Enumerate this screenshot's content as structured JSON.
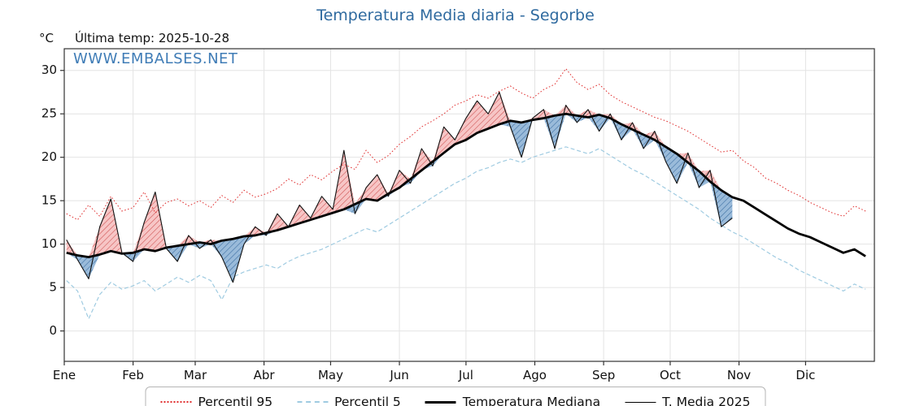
{
  "header": {
    "title": "Temperatura Media diaria - Segorbe",
    "unit_label": "°C",
    "last_temp_label": "Última temp: 2025-10-28",
    "watermark": "WWW.EMBALSES.NET"
  },
  "chart_data": {
    "type": "line",
    "title": "Temperatura Media diaria - Segorbe",
    "xlabel": "",
    "ylabel": "°C",
    "ylim": [
      -3.5,
      32.5
    ],
    "yticks": [
      0,
      5,
      10,
      15,
      20,
      25,
      30
    ],
    "x_unit": "day_of_year",
    "grid": true,
    "legend_position": "bottom",
    "month_ticks": {
      "days": [
        1,
        32,
        60,
        91,
        121,
        152,
        182,
        213,
        244,
        274,
        305,
        335
      ],
      "labels": [
        "Ene",
        "Feb",
        "Mar",
        "Abr",
        "May",
        "Jun",
        "Jul",
        "Ago",
        "Sep",
        "Oct",
        "Nov",
        "Dic"
      ]
    },
    "x": [
      2,
      7,
      12,
      17,
      22,
      27,
      32,
      37,
      42,
      47,
      52,
      57,
      62,
      67,
      72,
      77,
      82,
      87,
      92,
      97,
      102,
      107,
      112,
      117,
      122,
      127,
      132,
      137,
      142,
      147,
      152,
      157,
      162,
      167,
      172,
      177,
      182,
      187,
      192,
      197,
      202,
      207,
      212,
      217,
      222,
      227,
      232,
      237,
      242,
      247,
      252,
      257,
      262,
      267,
      272,
      277,
      282,
      287,
      292,
      297,
      302,
      307,
      312,
      317,
      322,
      327,
      332,
      337,
      342,
      347,
      352,
      357,
      362
    ],
    "series": [
      {
        "name": "Percentil 95",
        "style": "dotted",
        "values": [
          13.5,
          12.8,
          14.5,
          13.2,
          15.5,
          13.8,
          14.2,
          16.0,
          13.6,
          14.8,
          15.2,
          14.4,
          15.0,
          14.2,
          15.6,
          14.8,
          16.2,
          15.4,
          15.8,
          16.4,
          17.5,
          16.8,
          18.0,
          17.4,
          18.4,
          19.2,
          18.6,
          20.8,
          19.4,
          20.2,
          21.5,
          22.4,
          23.5,
          24.2,
          25.0,
          26.0,
          26.5,
          27.2,
          26.8,
          27.6,
          28.2,
          27.4,
          26.8,
          27.8,
          28.4,
          30.2,
          28.6,
          27.8,
          28.4,
          27.2,
          26.4,
          25.8,
          25.2,
          24.6,
          24.2,
          23.6,
          23.0,
          22.2,
          21.4,
          20.6,
          20.8,
          19.6,
          18.8,
          17.6,
          17.0,
          16.2,
          15.6,
          14.8,
          14.2,
          13.6,
          13.2,
          14.4,
          13.8
        ]
      },
      {
        "name": "Percentil 5",
        "style": "dashed",
        "values": [
          5.8,
          4.6,
          1.4,
          4.2,
          5.6,
          4.8,
          5.2,
          5.8,
          4.6,
          5.4,
          6.2,
          5.6,
          6.4,
          5.8,
          3.6,
          6.2,
          6.8,
          7.2,
          7.6,
          7.2,
          8.0,
          8.6,
          9.0,
          9.4,
          10.0,
          10.6,
          11.2,
          11.8,
          11.4,
          12.2,
          13.0,
          13.8,
          14.6,
          15.4,
          16.2,
          17.0,
          17.6,
          18.4,
          18.8,
          19.4,
          19.8,
          19.4,
          20.0,
          20.4,
          20.8,
          21.2,
          20.8,
          20.4,
          21.0,
          20.2,
          19.4,
          18.6,
          18.0,
          17.2,
          16.4,
          15.6,
          14.8,
          14.0,
          13.0,
          12.2,
          11.4,
          10.8,
          10.0,
          9.2,
          8.4,
          7.8,
          7.0,
          6.4,
          5.8,
          5.2,
          4.6,
          5.4,
          4.8
        ]
      },
      {
        "name": "Temperatura Mediana",
        "style": "solid-thick",
        "values": [
          9.0,
          8.7,
          8.5,
          8.8,
          9.2,
          8.9,
          9.0,
          9.4,
          9.2,
          9.6,
          9.8,
          10.0,
          10.2,
          10.0,
          10.4,
          10.6,
          10.9,
          11.0,
          11.3,
          11.6,
          12.0,
          12.4,
          12.8,
          13.2,
          13.6,
          14.0,
          14.6,
          15.2,
          15.0,
          15.8,
          16.5,
          17.5,
          18.5,
          19.5,
          20.5,
          21.5,
          22.0,
          22.8,
          23.3,
          23.8,
          24.2,
          24.0,
          24.3,
          24.5,
          24.8,
          25.0,
          24.8,
          24.6,
          24.9,
          24.5,
          23.8,
          23.2,
          22.6,
          22.0,
          21.2,
          20.4,
          19.4,
          18.4,
          17.2,
          16.2,
          15.4,
          15.0,
          14.2,
          13.4,
          12.6,
          11.8,
          11.2,
          10.8,
          10.2,
          9.6,
          9.0,
          9.4,
          8.6
        ]
      },
      {
        "name": "T. Media 2025",
        "style": "solid-thin",
        "last_date": "2025-10-28",
        "values": [
          10.5,
          8.2,
          6.0,
          12.0,
          15.2,
          9.0,
          8.0,
          12.5,
          16.0,
          9.5,
          8.0,
          11.0,
          9.5,
          10.5,
          8.5,
          5.6,
          10.0,
          12.0,
          11.0,
          13.5,
          12.0,
          14.5,
          13.0,
          15.5,
          14.0,
          20.8,
          13.5,
          16.5,
          18.0,
          15.5,
          18.5,
          17.0,
          21.0,
          19.0,
          23.5,
          22.0,
          24.5,
          26.5,
          25.0,
          27.5,
          23.5,
          20.0,
          24.5,
          25.5,
          21.0,
          26.0,
          24.0,
          25.5,
          23.0,
          25.0,
          22.0,
          24.0,
          21.0,
          23.0,
          19.5,
          17.0,
          20.5,
          16.5,
          18.5,
          12.0,
          13.0
        ]
      }
    ],
    "legend": [
      {
        "label": "Percentil 95"
      },
      {
        "label": "Percentil 5"
      },
      {
        "label": "Temperatura Mediana"
      },
      {
        "label": "T. Media 2025"
      }
    ],
    "colors": {
      "title": "#2f6a9f",
      "watermark": "#3f7cb6",
      "p95": "#e03030",
      "p5": "#9fcbe1",
      "median": "#000000",
      "t2025": "#111111",
      "red_fill": "#f6bcbc",
      "red_hatch": "#d05555",
      "blue_fill": "#8fb4d6",
      "blue_hatch": "#3d6fa3",
      "grid": "#e4e4e4",
      "axis": "#333333"
    }
  }
}
